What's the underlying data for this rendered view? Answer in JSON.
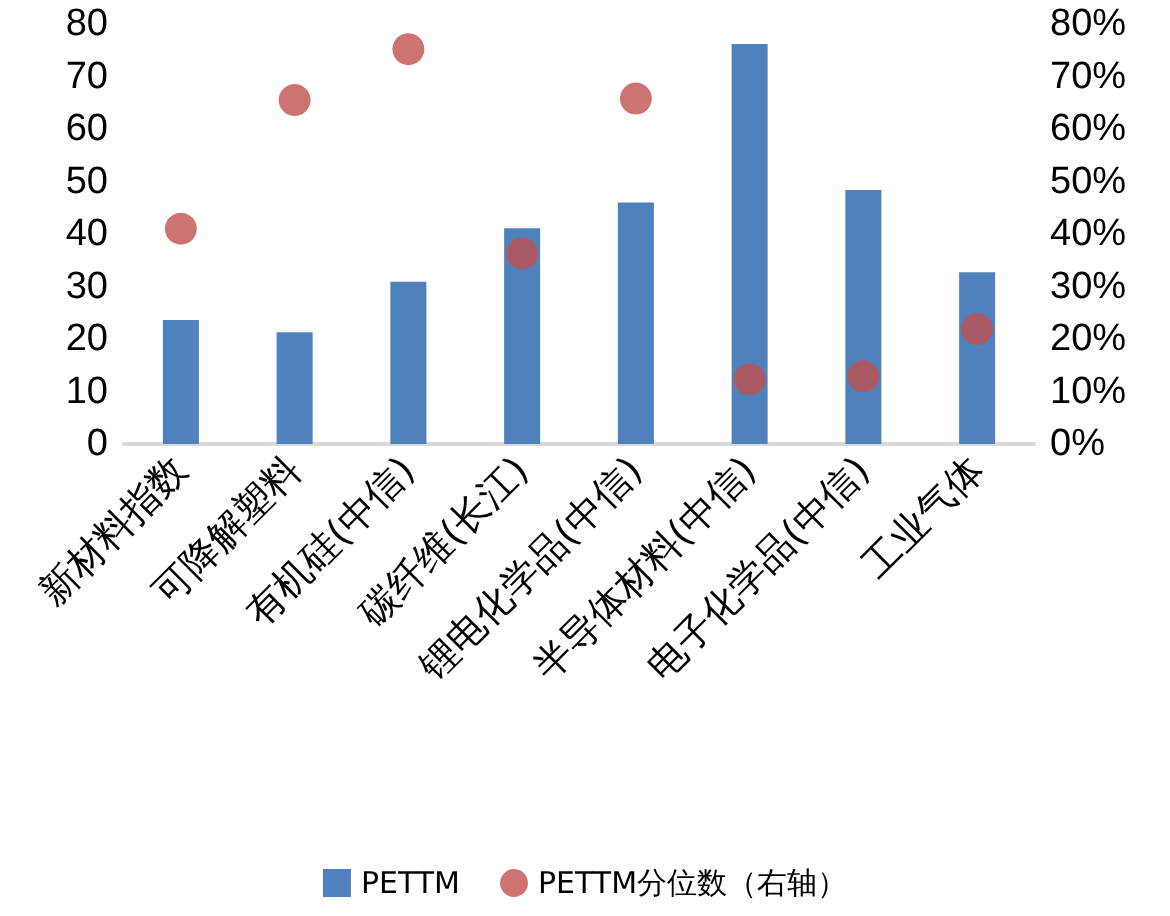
{
  "chart_data": {
    "type": "bar",
    "categories": [
      "新材料指数",
      "可降解塑料",
      "有机硅(中信)",
      "碳纤维(长江)",
      "锂电化学品(中信)",
      "半导体材料(中信)",
      "电子化学品(中信)",
      "工业气体"
    ],
    "series": [
      {
        "name": "PETTM",
        "color": "#4f81bd",
        "values": [
          23.6,
          21.3,
          30.9,
          41.1,
          46.0,
          76.2,
          48.4,
          32.7
        ]
      },
      {
        "name": "PETTM分位数（右轴）",
        "type": "scatter",
        "axis": "y2",
        "color": "#c0504d",
        "values": [
          0.41,
          0.655,
          0.752,
          0.363,
          0.658,
          0.123,
          0.129,
          0.219
        ]
      }
    ],
    "ylim": [
      0,
      80
    ],
    "yticks": [
      0,
      10,
      20,
      30,
      40,
      50,
      60,
      70,
      80
    ],
    "y2lim": [
      0,
      0.8
    ],
    "y2ticks": [
      {
        "value": 0,
        "label": "0%"
      },
      {
        "value": 0.1,
        "label": "10%"
      },
      {
        "value": 0.2,
        "label": "20%"
      },
      {
        "value": 0.3,
        "label": "30%"
      },
      {
        "value": 0.4,
        "label": "40%"
      },
      {
        "value": 0.5,
        "label": "50%"
      },
      {
        "value": 0.6,
        "label": "60%"
      },
      {
        "value": 0.7,
        "label": "70%"
      },
      {
        "value": 0.8,
        "label": "80%"
      }
    ],
    "marker": "circle",
    "grid": false,
    "legend": "bottom"
  }
}
